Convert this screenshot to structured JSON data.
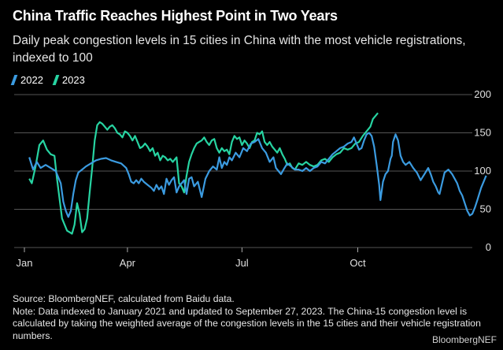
{
  "title": "China Traffic Reaches Highest Point in Two Years",
  "subtitle": "Daily peak congestion levels in 15 cities in China with the most vehicle registrations, indexed to 100",
  "footer": {
    "source": "Source: BloombergNEF, calculated from Baidu data.",
    "note": "Note: Data indexed to January 2021 and updated to September 27, 2023. The China-15 congestion level is calculated by taking the weighted average of the congestion levels in the 15 cities and their vehicle registration numbers."
  },
  "credit": "BloombergNEF",
  "colors": {
    "s2022": "#3b9be0",
    "s2023": "#27d4a2",
    "grid": "#555555"
  },
  "chart_data": {
    "type": "line",
    "ylim": [
      0,
      200
    ],
    "yticks": [
      0,
      50,
      100,
      150,
      200
    ],
    "xlim": [
      1,
      365
    ],
    "xticks": [
      {
        "day": 1,
        "label": "Jan"
      },
      {
        "day": 91,
        "label": "Apr"
      },
      {
        "day": 182,
        "label": "Jul"
      },
      {
        "day": 274,
        "label": "Oct"
      }
    ],
    "series": [
      {
        "name": "2022",
        "points": [
          [
            1,
            118
          ],
          [
            4,
            102
          ],
          [
            7,
            112
          ],
          [
            10,
            104
          ],
          [
            14,
            108
          ],
          [
            18,
            104
          ],
          [
            22,
            100
          ],
          [
            24,
            92
          ],
          [
            26,
            84
          ],
          [
            28,
            60
          ],
          [
            30,
            48
          ],
          [
            32,
            40
          ],
          [
            34,
            48
          ],
          [
            36,
            70
          ],
          [
            38,
            88
          ],
          [
            40,
            98
          ],
          [
            43,
            102
          ],
          [
            46,
            106
          ],
          [
            50,
            110
          ],
          [
            54,
            114
          ],
          [
            58,
            116
          ],
          [
            62,
            117
          ],
          [
            66,
            114
          ],
          [
            70,
            112
          ],
          [
            74,
            110
          ],
          [
            78,
            104
          ],
          [
            80,
            96
          ],
          [
            82,
            86
          ],
          [
            84,
            84
          ],
          [
            86,
            88
          ],
          [
            88,
            84
          ],
          [
            90,
            90
          ],
          [
            92,
            86
          ],
          [
            95,
            82
          ],
          [
            98,
            78
          ],
          [
            100,
            74
          ],
          [
            102,
            82
          ],
          [
            104,
            76
          ],
          [
            106,
            80
          ],
          [
            108,
            70
          ],
          [
            110,
            90
          ],
          [
            112,
            82
          ],
          [
            114,
            88
          ],
          [
            116,
            92
          ],
          [
            118,
            72
          ],
          [
            120,
            80
          ],
          [
            122,
            84
          ],
          [
            124,
            88
          ],
          [
            126,
            70
          ],
          [
            128,
            90
          ],
          [
            130,
            92
          ],
          [
            132,
            80
          ],
          [
            135,
            86
          ],
          [
            138,
            66
          ],
          [
            141,
            90
          ],
          [
            144,
            100
          ],
          [
            147,
            106
          ],
          [
            150,
            102
          ],
          [
            152,
            118
          ],
          [
            154,
            104
          ],
          [
            156,
            112
          ],
          [
            158,
            108
          ],
          [
            160,
            118
          ],
          [
            162,
            114
          ],
          [
            165,
            124
          ],
          [
            168,
            118
          ],
          [
            171,
            130
          ],
          [
            174,
            126
          ],
          [
            177,
            136
          ],
          [
            180,
            138
          ],
          [
            183,
            142
          ],
          [
            186,
            130
          ],
          [
            189,
            124
          ],
          [
            192,
            112
          ],
          [
            195,
            118
          ],
          [
            197,
            104
          ],
          [
            199,
            100
          ],
          [
            201,
            96
          ],
          [
            203,
            102
          ],
          [
            206,
            110
          ],
          [
            209,
            106
          ],
          [
            212,
            102
          ],
          [
            215,
            102
          ],
          [
            218,
            100
          ],
          [
            221,
            104
          ],
          [
            224,
            100
          ],
          [
            227,
            104
          ],
          [
            230,
            106
          ],
          [
            233,
            112
          ],
          [
            236,
            110
          ],
          [
            239,
            116
          ],
          [
            242,
            122
          ],
          [
            245,
            126
          ],
          [
            248,
            130
          ],
          [
            251,
            132
          ],
          [
            254,
            136
          ],
          [
            257,
            138
          ],
          [
            259,
            144
          ],
          [
            261,
            136
          ],
          [
            263,
            128
          ],
          [
            265,
            130
          ],
          [
            267,
            140
          ],
          [
            269,
            148
          ],
          [
            271,
            150
          ],
          [
            273,
            146
          ],
          [
            275,
            132
          ],
          [
            277,
            108
          ],
          [
            279,
            82
          ],
          [
            280,
            62
          ],
          [
            282,
            86
          ],
          [
            284,
            96
          ],
          [
            286,
            100
          ],
          [
            288,
            116
          ],
          [
            289,
            120
          ],
          [
            290,
            138
          ],
          [
            292,
            148
          ],
          [
            294,
            140
          ],
          [
            296,
            120
          ],
          [
            298,
            112
          ],
          [
            300,
            108
          ],
          [
            303,
            112
          ],
          [
            306,
            104
          ],
          [
            309,
            98
          ],
          [
            312,
            88
          ],
          [
            315,
            96
          ],
          [
            318,
            104
          ],
          [
            320,
            96
          ],
          [
            322,
            86
          ],
          [
            324,
            80
          ],
          [
            326,
            72
          ],
          [
            327,
            70
          ],
          [
            329,
            84
          ],
          [
            331,
            98
          ],
          [
            334,
            102
          ],
          [
            337,
            96
          ],
          [
            339,
            90
          ],
          [
            341,
            84
          ],
          [
            343,
            74
          ],
          [
            345,
            68
          ],
          [
            347,
            58
          ],
          [
            349,
            48
          ],
          [
            351,
            42
          ],
          [
            353,
            44
          ],
          [
            355,
            52
          ],
          [
            357,
            62
          ],
          [
            360,
            78
          ],
          [
            363,
            90
          ],
          [
            364,
            94
          ]
        ]
      },
      {
        "name": "2023",
        "points": [
          [
            1,
            90
          ],
          [
            3,
            84
          ],
          [
            6,
            106
          ],
          [
            9,
            134
          ],
          [
            12,
            140
          ],
          [
            15,
            128
          ],
          [
            18,
            122
          ],
          [
            21,
            120
          ],
          [
            23,
            90
          ],
          [
            25,
            64
          ],
          [
            27,
            38
          ],
          [
            29,
            30
          ],
          [
            31,
            22
          ],
          [
            33,
            20
          ],
          [
            35,
            18
          ],
          [
            37,
            30
          ],
          [
            39,
            58
          ],
          [
            41,
            44
          ],
          [
            43,
            20
          ],
          [
            45,
            24
          ],
          [
            47,
            38
          ],
          [
            49,
            72
          ],
          [
            51,
            104
          ],
          [
            53,
            140
          ],
          [
            55,
            160
          ],
          [
            57,
            164
          ],
          [
            59,
            162
          ],
          [
            61,
            158
          ],
          [
            63,
            154
          ],
          [
            65,
            158
          ],
          [
            67,
            160
          ],
          [
            69,
            156
          ],
          [
            71,
            150
          ],
          [
            73,
            148
          ],
          [
            75,
            144
          ],
          [
            77,
            152
          ],
          [
            79,
            150
          ],
          [
            81,
            146
          ],
          [
            83,
            140
          ],
          [
            85,
            146
          ],
          [
            87,
            138
          ],
          [
            89,
            130
          ],
          [
            91,
            132
          ],
          [
            93,
            136
          ],
          [
            95,
            132
          ],
          [
            97,
            126
          ],
          [
            99,
            130
          ],
          [
            101,
            120
          ],
          [
            103,
            124
          ],
          [
            105,
            114
          ],
          [
            107,
            120
          ],
          [
            109,
            118
          ],
          [
            111,
            114
          ],
          [
            113,
            116
          ],
          [
            115,
            112
          ],
          [
            117,
            116
          ],
          [
            118,
            118
          ],
          [
            120,
            84
          ],
          [
            122,
            80
          ],
          [
            124,
            72
          ],
          [
            126,
            94
          ],
          [
            128,
            112
          ],
          [
            130,
            122
          ],
          [
            132,
            130
          ],
          [
            134,
            136
          ],
          [
            136,
            138
          ],
          [
            138,
            140
          ],
          [
            140,
            144
          ],
          [
            142,
            138
          ],
          [
            144,
            134
          ],
          [
            146,
            140
          ],
          [
            148,
            142
          ],
          [
            150,
            130
          ],
          [
            152,
            124
          ],
          [
            154,
            130
          ],
          [
            156,
            126
          ],
          [
            158,
            128
          ],
          [
            160,
            122
          ],
          [
            162,
            138
          ],
          [
            164,
            146
          ],
          [
            166,
            142
          ],
          [
            168,
            144
          ],
          [
            170,
            134
          ],
          [
            172,
            140
          ],
          [
            174,
            136
          ],
          [
            176,
            130
          ],
          [
            178,
            138
          ],
          [
            180,
            140
          ],
          [
            182,
            150
          ],
          [
            184,
            148
          ],
          [
            186,
            152
          ],
          [
            188,
            138
          ],
          [
            190,
            134
          ],
          [
            192,
            138
          ],
          [
            194,
            132
          ],
          [
            196,
            128
          ],
          [
            198,
            124
          ],
          [
            200,
            130
          ],
          [
            202,
            122
          ],
          [
            204,
            116
          ],
          [
            206,
            108
          ],
          [
            208,
            110
          ],
          [
            210,
            104
          ],
          [
            212,
            102
          ],
          [
            215,
            110
          ],
          [
            218,
            108
          ],
          [
            221,
            112
          ],
          [
            224,
            108
          ],
          [
            227,
            106
          ],
          [
            230,
            108
          ],
          [
            233,
            114
          ],
          [
            236,
            116
          ],
          [
            239,
            112
          ],
          [
            242,
            118
          ],
          [
            245,
            122
          ],
          [
            248,
            124
          ],
          [
            251,
            130
          ],
          [
            254,
            128
          ],
          [
            257,
            130
          ],
          [
            260,
            136
          ],
          [
            263,
            138
          ],
          [
            266,
            146
          ],
          [
            269,
            152
          ],
          [
            272,
            158
          ],
          [
            274,
            168
          ],
          [
            276,
            172
          ],
          [
            278,
            176
          ]
        ]
      }
    ]
  }
}
